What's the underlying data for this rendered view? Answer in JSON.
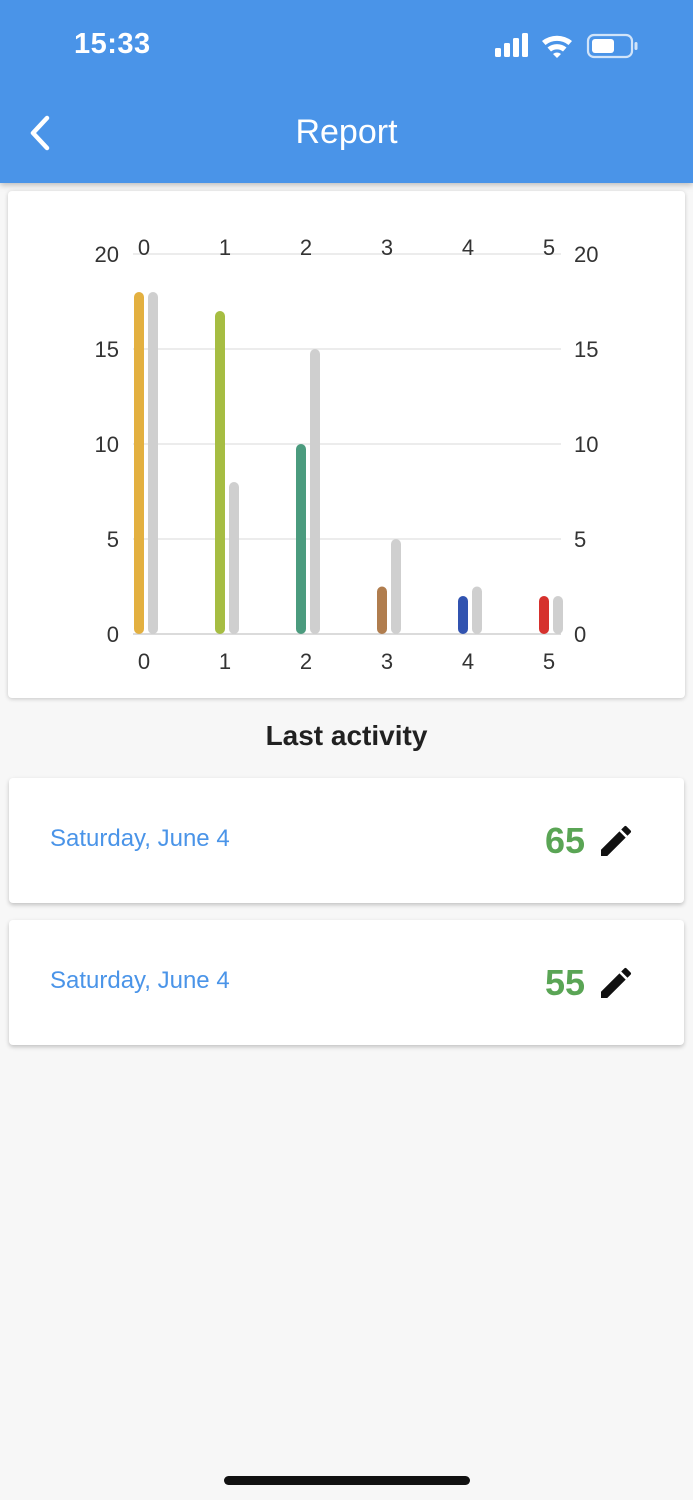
{
  "status_bar": {
    "time": "15:33"
  },
  "header": {
    "title": "Report",
    "back_icon": "chevron-left-icon"
  },
  "chart_data": {
    "type": "bar",
    "categories": [
      "0",
      "1",
      "2",
      "3",
      "4",
      "5"
    ],
    "series": [
      {
        "values": [
          18,
          17,
          10,
          2.5,
          2,
          2
        ],
        "colors": [
          "#e3b040",
          "#a6bd42",
          "#4b9b7e",
          "#b07d4e",
          "#3153b0",
          "#d6312d"
        ]
      },
      {
        "values": [
          18,
          8,
          15,
          5,
          2.5,
          2
        ],
        "color": "#cfcfcf"
      }
    ],
    "y_ticks": [
      "0",
      "5",
      "10",
      "15",
      "20"
    ],
    "ylim": [
      0,
      20
    ],
    "grid": true,
    "xlabel": "",
    "ylabel": ""
  },
  "activity": {
    "title": "Last activity",
    "items": [
      {
        "date": "Saturday, June 4",
        "score": "65",
        "icon": "pencil-icon"
      },
      {
        "date": "Saturday, June 4",
        "score": "55",
        "icon": "pencil-icon"
      }
    ]
  }
}
